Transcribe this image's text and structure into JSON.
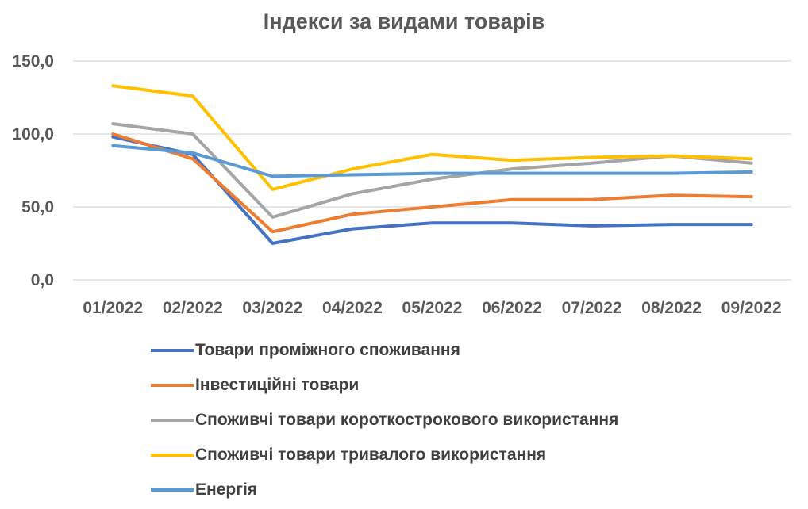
{
  "chart_data": {
    "type": "line",
    "title": "Індекси за видами товарів",
    "xlabel": "",
    "ylabel": "",
    "categories": [
      "01/2022",
      "02/2022",
      "03/2022",
      "04/2022",
      "05/2022",
      "06/2022",
      "07/2022",
      "08/2022",
      "09/2022"
    ],
    "y_ticks": [
      "0,0",
      "50,0",
      "100,0",
      "150,0"
    ],
    "ylim": [
      0,
      150
    ],
    "grid": true,
    "legend_position": "bottom",
    "series": [
      {
        "name": "Товари проміжного споживання",
        "color": "#4472C4",
        "values": [
          98,
          86,
          25,
          35,
          39,
          39,
          37,
          38,
          38
        ]
      },
      {
        "name": "Інвестиційні товари",
        "color": "#ED7D31",
        "values": [
          100,
          83,
          33,
          45,
          50,
          55,
          55,
          58,
          57
        ]
      },
      {
        "name": "Споживчі товари короткострокового використання",
        "color": "#A5A5A5",
        "values": [
          107,
          100,
          43,
          59,
          69,
          76,
          80,
          85,
          80
        ]
      },
      {
        "name": "Споживчі товари тривалого використання",
        "color": "#FFC000",
        "values": [
          133,
          126,
          62,
          76,
          86,
          82,
          84,
          85,
          83
        ]
      },
      {
        "name": "Енергія",
        "color": "#5B9BD5",
        "values": [
          92,
          87,
          71,
          72,
          73,
          73,
          73,
          73,
          74
        ]
      }
    ]
  }
}
